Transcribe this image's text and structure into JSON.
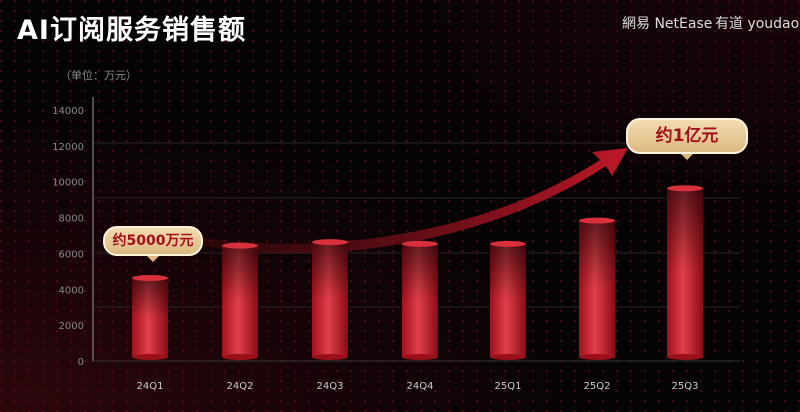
{
  "title": "AI订阅服务销售额",
  "logos": {
    "netease": "網易 NetEase",
    "youdao": "有道 youdao"
  },
  "chart_data": {
    "type": "bar",
    "title": "AI订阅服务销售额",
    "unit_label": "（单位：万元）",
    "categories": [
      "24Q1",
      "24Q2",
      "24Q3",
      "24Q4",
      "25Q1",
      "25Q2",
      "25Q3"
    ],
    "values": [
      4800,
      6600,
      6800,
      6700,
      6700,
      8000,
      9800
    ],
    "ylim": [
      0,
      14000
    ],
    "yticks": [
      "0",
      "2000",
      "4000",
      "6000",
      "8000",
      "10000",
      "12000",
      "14000"
    ],
    "annotations": [
      {
        "category": "24Q1",
        "text": "约5000万元"
      },
      {
        "category": "25Q3",
        "text": "约1亿元"
      }
    ],
    "bar_color": "#c8202e",
    "trend_arrow": true
  }
}
